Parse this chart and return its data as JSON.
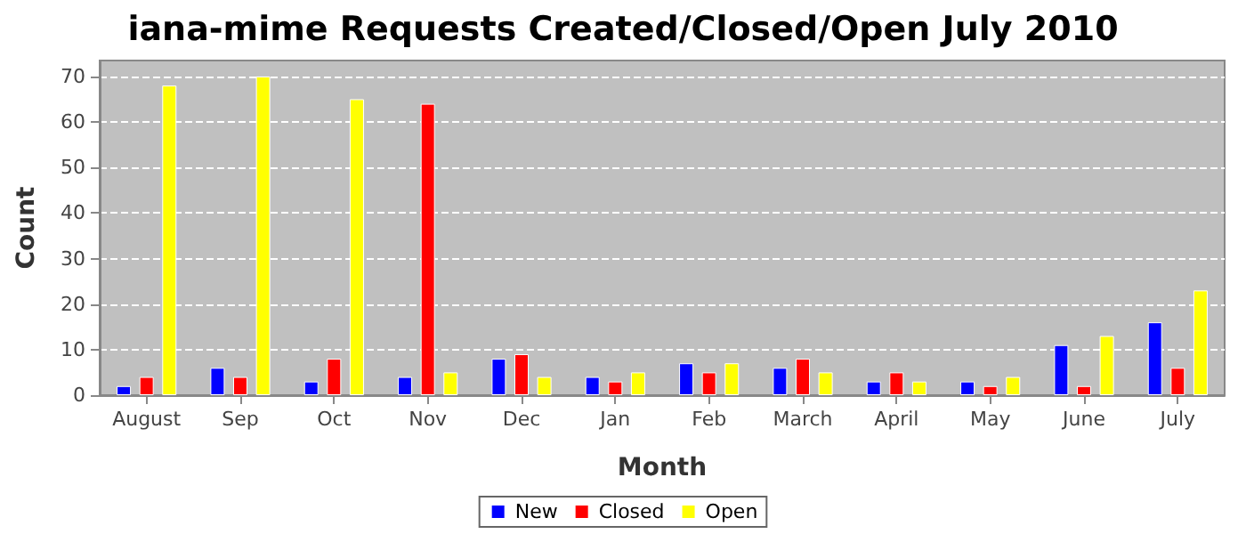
{
  "chart_data": {
    "type": "bar",
    "title": "iana-mime Requests Created/Closed/Open July 2010",
    "xlabel": "Month",
    "ylabel": "Count",
    "categories": [
      "August",
      "Sep",
      "Oct",
      "Nov",
      "Dec",
      "Jan",
      "Feb",
      "March",
      "April",
      "May",
      "June",
      "July"
    ],
    "series": [
      {
        "name": "New",
        "color": "#0000ff",
        "values": [
          2,
          6,
          3,
          4,
          8,
          4,
          7,
          6,
          3,
          3,
          11,
          16
        ]
      },
      {
        "name": "Closed",
        "color": "#ff0000",
        "values": [
          4,
          4,
          8,
          64,
          9,
          3,
          5,
          8,
          5,
          2,
          2,
          6
        ]
      },
      {
        "name": "Open",
        "color": "#ffff00",
        "values": [
          68,
          70,
          65,
          5,
          4,
          5,
          7,
          5,
          3,
          4,
          13,
          23
        ]
      }
    ],
    "ylim": [
      0,
      73.5
    ],
    "yticks": [
      0,
      10,
      20,
      30,
      40,
      50,
      60,
      70
    ],
    "grid": "y",
    "legend": "bottom"
  }
}
